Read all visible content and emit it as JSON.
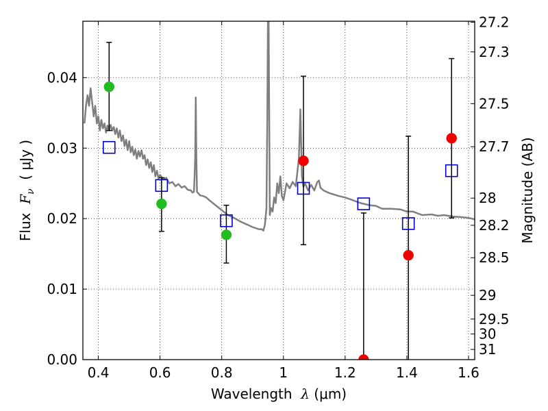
{
  "chart_data": {
    "type": "scatter",
    "xlabel": {
      "prefix": "Wavelength  ",
      "symbol": "λ",
      "unit": " (μm)"
    },
    "ylabel": {
      "prefix": "Flux  ",
      "symbol": "F",
      "subscript": "ν",
      "unit": "  ( μJy )"
    },
    "y2label": "Magnitude (AB)",
    "xlim": [
      0.35,
      1.62
    ],
    "ylim": [
      0.0,
      0.048
    ],
    "grid": true,
    "x_ticks": [
      {
        "value": 0.4,
        "label": "0.4"
      },
      {
        "value": 0.6,
        "label": "0.6"
      },
      {
        "value": 0.8,
        "label": "0.8"
      },
      {
        "value": 1.0,
        "label": "1"
      },
      {
        "value": 1.2,
        "label": "1.2"
      },
      {
        "value": 1.4,
        "label": "1.4"
      },
      {
        "value": 1.6,
        "label": "1.6"
      }
    ],
    "y_ticks": [
      {
        "value": 0.0,
        "label": "0.00"
      },
      {
        "value": 0.01,
        "label": "0.01"
      },
      {
        "value": 0.02,
        "label": "0.02"
      },
      {
        "value": 0.03,
        "label": "0.03"
      },
      {
        "value": 0.04,
        "label": "0.04"
      }
    ],
    "y2_ticks": [
      {
        "magnitude": 27.2,
        "label": "27.2"
      },
      {
        "magnitude": 27.3,
        "label": "27.3"
      },
      {
        "magnitude": 27.5,
        "label": "27.5"
      },
      {
        "magnitude": 27.7,
        "label": "27.7"
      },
      {
        "magnitude": 28.0,
        "label": "28"
      },
      {
        "magnitude": 28.2,
        "label": "28.2"
      },
      {
        "magnitude": 28.5,
        "label": "28.5"
      },
      {
        "magnitude": 29.0,
        "label": "29"
      },
      {
        "magnitude": 29.5,
        "label": "29.5"
      },
      {
        "magnitude": 30.0,
        "label": "30"
      },
      {
        "magnitude": 31.0,
        "label": "31"
      }
    ],
    "series": [
      {
        "kind": "line",
        "color": "#7f7f7f",
        "points": [
          [
            0.355,
            0.0335
          ],
          [
            0.36,
            0.036
          ],
          [
            0.365,
            0.0375
          ],
          [
            0.37,
            0.036
          ],
          [
            0.375,
            0.0385
          ],
          [
            0.38,
            0.0365
          ],
          [
            0.385,
            0.0345
          ],
          [
            0.39,
            0.036
          ],
          [
            0.395,
            0.0335
          ],
          [
            0.4,
            0.0345
          ],
          [
            0.405,
            0.0325
          ],
          [
            0.41,
            0.034
          ],
          [
            0.415,
            0.0328
          ],
          [
            0.42,
            0.0335
          ],
          [
            0.425,
            0.0322
          ],
          [
            0.43,
            0.0332
          ],
          [
            0.435,
            0.0325
          ],
          [
            0.44,
            0.0333
          ],
          [
            0.445,
            0.0325
          ],
          [
            0.45,
            0.033
          ],
          [
            0.455,
            0.032
          ],
          [
            0.46,
            0.0328
          ],
          [
            0.465,
            0.0315
          ],
          [
            0.47,
            0.0325
          ],
          [
            0.475,
            0.031
          ],
          [
            0.48,
            0.0318
          ],
          [
            0.485,
            0.0303
          ],
          [
            0.49,
            0.0312
          ],
          [
            0.495,
            0.0297
          ],
          [
            0.5,
            0.031
          ],
          [
            0.505,
            0.0294
          ],
          [
            0.51,
            0.0302
          ],
          [
            0.515,
            0.029
          ],
          [
            0.52,
            0.0298
          ],
          [
            0.525,
            0.0285
          ],
          [
            0.53,
            0.0296
          ],
          [
            0.535,
            0.0288
          ],
          [
            0.54,
            0.0297
          ],
          [
            0.545,
            0.0285
          ],
          [
            0.55,
            0.029
          ],
          [
            0.555,
            0.0276
          ],
          [
            0.56,
            0.0284
          ],
          [
            0.565,
            0.0272
          ],
          [
            0.57,
            0.028
          ],
          [
            0.575,
            0.0266
          ],
          [
            0.58,
            0.0276
          ],
          [
            0.585,
            0.026
          ],
          [
            0.59,
            0.0268
          ],
          [
            0.595,
            0.0257
          ],
          [
            0.6,
            0.0262
          ],
          [
            0.61,
            0.0256
          ],
          [
            0.62,
            0.0258
          ],
          [
            0.63,
            0.025
          ],
          [
            0.64,
            0.0252
          ],
          [
            0.65,
            0.0246
          ],
          [
            0.66,
            0.0249
          ],
          [
            0.67,
            0.0244
          ],
          [
            0.68,
            0.0246
          ],
          [
            0.69,
            0.0241
          ],
          [
            0.7,
            0.024
          ],
          [
            0.705,
            0.0237
          ],
          [
            0.71,
            0.0238
          ],
          [
            0.712,
            0.0258
          ],
          [
            0.714,
            0.0285
          ],
          [
            0.716,
            0.0372
          ],
          [
            0.718,
            0.0285
          ],
          [
            0.72,
            0.0238
          ],
          [
            0.73,
            0.0233
          ],
          [
            0.74,
            0.0232
          ],
          [
            0.75,
            0.023
          ],
          [
            0.76,
            0.0226
          ],
          [
            0.78,
            0.0219
          ],
          [
            0.8,
            0.0212
          ],
          [
            0.82,
            0.0205
          ],
          [
            0.84,
            0.0201
          ],
          [
            0.86,
            0.0196
          ],
          [
            0.88,
            0.0192
          ],
          [
            0.9,
            0.0188
          ],
          [
            0.92,
            0.0185
          ],
          [
            0.93,
            0.0185
          ],
          [
            0.935,
            0.0183
          ],
          [
            0.94,
            0.0191
          ],
          [
            0.945,
            0.0215
          ],
          [
            0.948,
            0.035
          ],
          [
            0.95,
            0.049
          ],
          [
            0.952,
            0.049
          ],
          [
            0.954,
            0.035
          ],
          [
            0.956,
            0.0205
          ],
          [
            0.96,
            0.0215
          ],
          [
            0.965,
            0.021
          ],
          [
            0.97,
            0.023
          ],
          [
            0.975,
            0.0222
          ],
          [
            0.98,
            0.025
          ],
          [
            0.985,
            0.0236
          ],
          [
            0.99,
            0.026
          ],
          [
            0.995,
            0.0232
          ],
          [
            1.0,
            0.0226
          ],
          [
            1.01,
            0.025
          ],
          [
            1.02,
            0.0243
          ],
          [
            1.03,
            0.0252
          ],
          [
            1.04,
            0.0246
          ],
          [
            1.05,
            0.0285
          ],
          [
            1.055,
            0.0355
          ],
          [
            1.06,
            0.026
          ],
          [
            1.065,
            0.0245
          ],
          [
            1.07,
            0.025
          ],
          [
            1.08,
            0.024
          ],
          [
            1.09,
            0.0248
          ],
          [
            1.1,
            0.024
          ],
          [
            1.11,
            0.0252
          ],
          [
            1.115,
            0.0254
          ],
          [
            1.12,
            0.0244
          ],
          [
            1.13,
            0.024
          ],
          [
            1.15,
            0.0236
          ],
          [
            1.18,
            0.0232
          ],
          [
            1.2,
            0.023
          ],
          [
            1.22,
            0.0227
          ],
          [
            1.25,
            0.0222
          ],
          [
            1.28,
            0.0219
          ],
          [
            1.3,
            0.0218
          ],
          [
            1.32,
            0.0214
          ],
          [
            1.35,
            0.0214
          ],
          [
            1.38,
            0.0213
          ],
          [
            1.4,
            0.021
          ],
          [
            1.42,
            0.021
          ],
          [
            1.45,
            0.0205
          ],
          [
            1.48,
            0.0206
          ],
          [
            1.5,
            0.0204
          ],
          [
            1.52,
            0.0205
          ],
          [
            1.55,
            0.0203
          ],
          [
            1.58,
            0.0202
          ],
          [
            1.6,
            0.0201
          ],
          [
            1.62,
            0.0199
          ]
        ]
      },
      {
        "kind": "errorbar",
        "color": "#000000",
        "points": [
          {
            "x": 0.435,
            "low": 0.0325,
            "high": 0.045
          },
          {
            "x": 0.605,
            "low": 0.0182,
            "high": 0.0258
          },
          {
            "x": 0.815,
            "low": 0.0137,
            "high": 0.0219
          },
          {
            "x": 1.065,
            "low": 0.0163,
            "high": 0.0402
          },
          {
            "x": 1.26,
            "low": 0.0,
            "high": 0.0208
          },
          {
            "x": 1.405,
            "low": 0.0,
            "high": 0.0317
          },
          {
            "x": 1.545,
            "low": 0.0201,
            "high": 0.0427
          }
        ]
      },
      {
        "kind": "squares",
        "color": "#0000cc",
        "points": [
          [
            0.435,
            0.0301
          ],
          [
            0.605,
            0.0247
          ],
          [
            0.815,
            0.0197
          ],
          [
            1.065,
            0.0243
          ],
          [
            1.26,
            0.0221
          ],
          [
            1.405,
            0.0193
          ],
          [
            1.545,
            0.0268
          ]
        ]
      },
      {
        "kind": "circles",
        "color": "#22bb22",
        "points": [
          [
            0.435,
            0.0387
          ],
          [
            0.605,
            0.0221
          ],
          [
            0.815,
            0.0177
          ]
        ]
      },
      {
        "kind": "circles",
        "color": "#ee0000",
        "points": [
          [
            1.065,
            0.0282
          ],
          [
            1.26,
            0.0
          ],
          [
            1.405,
            0.0148
          ],
          [
            1.545,
            0.0314
          ]
        ]
      }
    ]
  }
}
